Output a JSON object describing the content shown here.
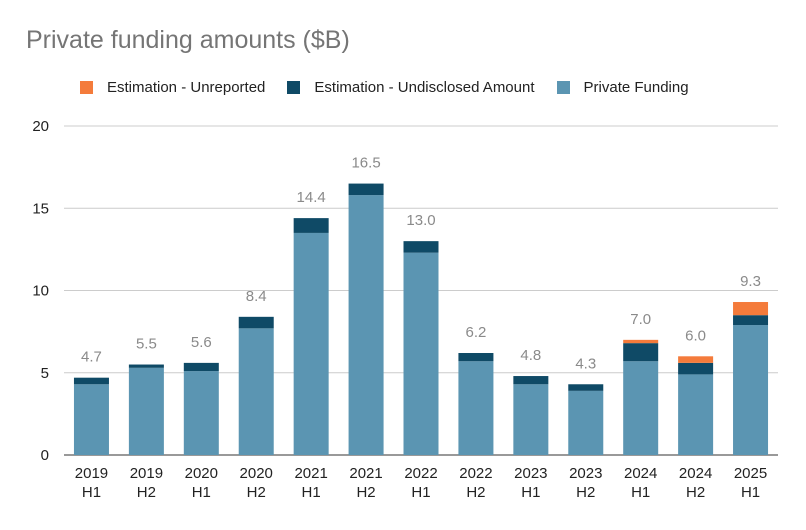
{
  "chart_data": {
    "type": "bar",
    "stacked": true,
    "title": "Private funding amounts ($B)",
    "xlabel": "",
    "ylabel": "",
    "ylim": [
      0,
      20
    ],
    "yticks": [
      0,
      5,
      10,
      15,
      20
    ],
    "grid": true,
    "legend_position": "top",
    "categories": [
      [
        "2019",
        "H1"
      ],
      [
        "2019",
        "H2"
      ],
      [
        "2020",
        "H1"
      ],
      [
        "2020",
        "H2"
      ],
      [
        "2021",
        "H1"
      ],
      [
        "2021",
        "H2"
      ],
      [
        "2022",
        "H1"
      ],
      [
        "2022",
        "H2"
      ],
      [
        "2023",
        "H1"
      ],
      [
        "2023",
        "H2"
      ],
      [
        "2024",
        "H1"
      ],
      [
        "2024",
        "H2"
      ],
      [
        "2025",
        "H1"
      ]
    ],
    "series": [
      {
        "name": "Private Funding",
        "color": "#5b95b2",
        "values": [
          4.3,
          5.3,
          5.1,
          7.7,
          13.5,
          15.8,
          12.3,
          5.7,
          4.3,
          3.9,
          5.7,
          4.9,
          7.9
        ]
      },
      {
        "name": "Estimation - Undisclosed Amount",
        "color": "#0f4a66",
        "values": [
          0.4,
          0.2,
          0.5,
          0.7,
          0.9,
          0.7,
          0.7,
          0.5,
          0.5,
          0.4,
          1.1,
          0.7,
          0.6
        ]
      },
      {
        "name": "Estimation - Unreported",
        "color": "#f47b3b",
        "values": [
          0,
          0,
          0,
          0,
          0,
          0,
          0,
          0,
          0,
          0,
          0.2,
          0.4,
          0.8
        ]
      }
    ],
    "totals": [
      "4.7",
      "5.5",
      "5.6",
      "8.4",
      "14.4",
      "16.5",
      "13.0",
      "6.2",
      "4.8",
      "4.3",
      "7.0",
      "6.0",
      "9.3"
    ],
    "legend_order": [
      "Estimation - Unreported",
      "Estimation - Undisclosed Amount",
      "Private Funding"
    ]
  }
}
